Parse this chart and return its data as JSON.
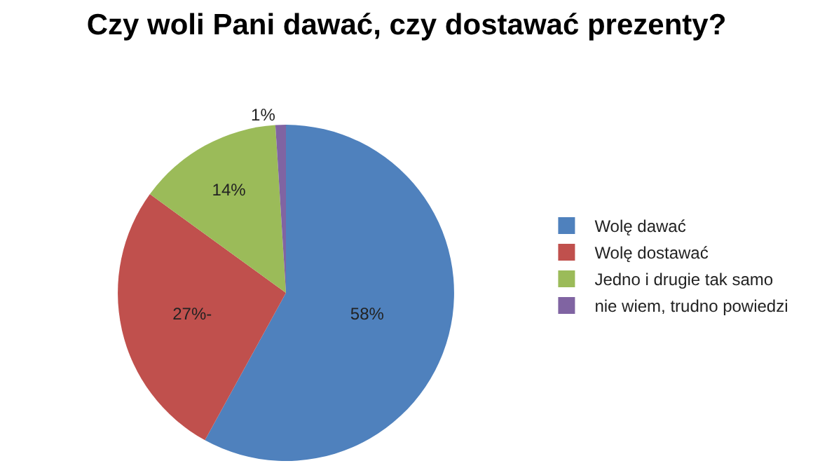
{
  "chart_data": {
    "type": "pie",
    "title": "Czy woli Pani dawać, czy dostawać prezenty?",
    "categories": [
      "Wolę dawać",
      "Wolę dostawać",
      "Jedno i drugie tak samo",
      "nie wiem, trudno powiedzi"
    ],
    "values": [
      58,
      27,
      14,
      1
    ],
    "colors": [
      "#4f81bd",
      "#c0504d",
      "#9bbb59",
      "#8064a2"
    ],
    "value_labels": [
      "58%",
      "27%-",
      "14%",
      "1%"
    ],
    "legend": "right"
  }
}
